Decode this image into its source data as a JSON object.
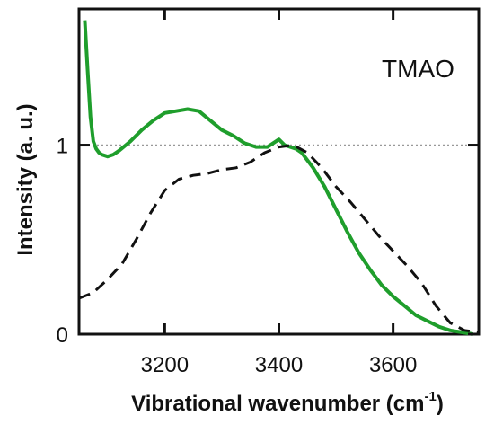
{
  "chart_data": {
    "type": "line",
    "annotation": "TMAO",
    "xlabel": "Vibrational wavenumber (cm",
    "xlabel_sup": "-1",
    "xlabel_end": ")",
    "ylabel": "Intensity (a. u.)",
    "xlim": [
      3050,
      3750
    ],
    "ylim": [
      0,
      1.72
    ],
    "x_ticks": [
      3200,
      3400,
      3600
    ],
    "x_tick_labels": [
      "3200",
      "3400",
      "3600"
    ],
    "y_ticks": [
      0,
      1
    ],
    "y_tick_labels": [
      "0",
      "1"
    ],
    "reference_line_y": 1,
    "grid": false,
    "series": [
      {
        "style": "solid",
        "color": "#1f9e2c",
        "x": [
          3060,
          3065,
          3070,
          3075,
          3080,
          3085,
          3090,
          3100,
          3110,
          3120,
          3140,
          3160,
          3180,
          3200,
          3220,
          3240,
          3260,
          3280,
          3300,
          3320,
          3340,
          3360,
          3380,
          3400,
          3410,
          3420,
          3430,
          3440,
          3460,
          3480,
          3500,
          3520,
          3540,
          3560,
          3580,
          3600,
          3620,
          3640,
          3660,
          3680,
          3700,
          3720,
          3740
        ],
        "y": [
          1.66,
          1.4,
          1.15,
          1.02,
          0.98,
          0.96,
          0.95,
          0.94,
          0.95,
          0.97,
          1.02,
          1.08,
          1.13,
          1.17,
          1.18,
          1.19,
          1.18,
          1.13,
          1.08,
          1.05,
          1.01,
          0.99,
          0.99,
          1.03,
          1.0,
          0.99,
          0.98,
          0.96,
          0.88,
          0.78,
          0.66,
          0.54,
          0.43,
          0.34,
          0.26,
          0.2,
          0.15,
          0.1,
          0.07,
          0.04,
          0.02,
          0.01,
          0.0
        ]
      },
      {
        "style": "dashed",
        "color": "#111111",
        "x": [
          3050,
          3075,
          3100,
          3125,
          3150,
          3175,
          3200,
          3225,
          3250,
          3275,
          3300,
          3325,
          3350,
          3375,
          3400,
          3425,
          3450,
          3475,
          3500,
          3525,
          3550,
          3575,
          3600,
          3625,
          3650,
          3675,
          3700,
          3725,
          3750
        ],
        "y": [
          0.19,
          0.22,
          0.29,
          0.37,
          0.5,
          0.64,
          0.76,
          0.82,
          0.84,
          0.85,
          0.87,
          0.88,
          0.91,
          0.96,
          0.99,
          1.0,
          0.96,
          0.88,
          0.78,
          0.7,
          0.61,
          0.52,
          0.44,
          0.36,
          0.27,
          0.15,
          0.06,
          0.02,
          0.01
        ]
      }
    ]
  }
}
